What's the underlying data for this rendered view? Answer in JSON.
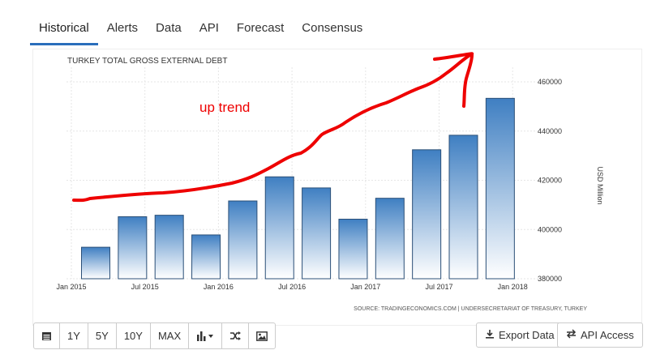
{
  "tabs": [
    {
      "label": "Historical",
      "active": true
    },
    {
      "label": "Alerts"
    },
    {
      "label": "Data"
    },
    {
      "label": "API"
    },
    {
      "label": "Forecast"
    },
    {
      "label": "Consensus"
    }
  ],
  "chart_data": {
    "type": "bar",
    "title": "TURKEY TOTAL GROSS EXTERNAL DEBT",
    "ylabel": "USD Million",
    "ylim": [
      380000,
      465000
    ],
    "yticks": [
      380000,
      400000,
      420000,
      440000,
      460000
    ],
    "xtick_labels": [
      "Jan 2015",
      "Jul 2015",
      "Jan 2016",
      "Jul 2016",
      "Jan 2017",
      "Jul 2017",
      "Jan 2018"
    ],
    "categories": [
      "Q1 2015",
      "Q2 2015",
      "Q3 2015",
      "Q4 2015",
      "Q1 2016",
      "Q2 2016",
      "Q3 2016",
      "Q4 2016",
      "Q1 2017",
      "Q2 2017",
      "Q3 2017",
      "Q4 2017"
    ],
    "values": [
      392800,
      405200,
      405800,
      397800,
      411600,
      421400,
      416900,
      404200,
      412700,
      432400,
      438300,
      453300
    ],
    "annotation": "up trend",
    "annotation_color": "#ee0000",
    "bar_color_top": "#3f7fc2",
    "bar_color_bottom": "#ffffff",
    "source": "SOURCE: TRADINGECONOMICS.COM | UNDERSECRETARIAT OF TREASURY, TURKEY"
  },
  "toolbar": {
    "buttons": [
      {
        "name": "calendar",
        "icon": "calendar-icon"
      },
      {
        "label": "1Y"
      },
      {
        "label": "5Y"
      },
      {
        "label": "10Y"
      },
      {
        "label": "MAX"
      },
      {
        "name": "chart-type",
        "icon": "bar-chart-icon"
      },
      {
        "name": "shuffle",
        "icon": "shuffle-icon"
      },
      {
        "name": "image",
        "icon": "image-icon"
      }
    ],
    "export_label": "Export Data",
    "api_label": "API Access"
  }
}
